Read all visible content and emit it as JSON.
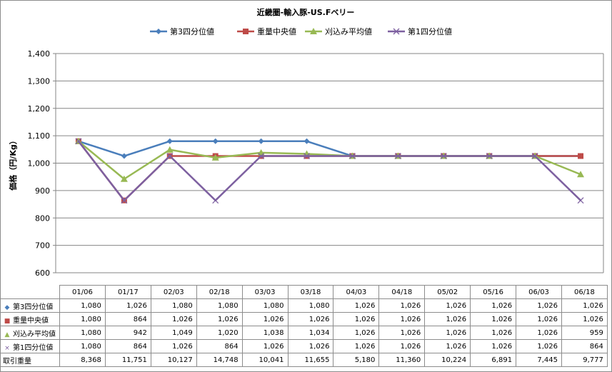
{
  "chart_data": {
    "type": "line",
    "title": "近畿圏-輸入豚-US.Fベリー",
    "ylabel": "価格（円/Kg）",
    "ylim": [
      600,
      1400
    ],
    "yticks": [
      600,
      700,
      800,
      900,
      1000,
      1100,
      1200,
      1300,
      1400
    ],
    "ytick_labels": [
      "600",
      "700",
      "800",
      "900",
      "1,000",
      "1,100",
      "1,200",
      "1,300",
      "1,400"
    ],
    "grid": true,
    "legend_position": "top",
    "categories": [
      "01/06",
      "01/17",
      "02/03",
      "02/18",
      "03/03",
      "03/18",
      "04/03",
      "04/18",
      "05/02",
      "05/16",
      "06/03",
      "06/18"
    ],
    "series": [
      {
        "name": "第3四分位値",
        "color": "#4a7ebb",
        "marker": "diamond",
        "values": [
          1080,
          1026,
          1080,
          1080,
          1080,
          1080,
          1026,
          1026,
          1026,
          1026,
          1026,
          1026
        ]
      },
      {
        "name": "重量中央値",
        "color": "#be4b48",
        "marker": "square",
        "values": [
          1080,
          864,
          1026,
          1026,
          1026,
          1026,
          1026,
          1026,
          1026,
          1026,
          1026,
          1026
        ]
      },
      {
        "name": "刈込み平均値",
        "color": "#98b954",
        "marker": "triangle",
        "values": [
          1080,
          942,
          1049,
          1020,
          1038,
          1034,
          1026,
          1026,
          1026,
          1026,
          1026,
          959
        ]
      },
      {
        "name": "第1四分位値",
        "color": "#7d60a0",
        "marker": "x",
        "values": [
          1080,
          864,
          1026,
          864,
          1026,
          1026,
          1026,
          1026,
          1026,
          1026,
          1026,
          864
        ]
      }
    ],
    "table": {
      "rows": [
        {
          "label": "第3四分位値",
          "marker": "◆",
          "color": "#4a7ebb",
          "cells": [
            "1,080",
            "1,026",
            "1,080",
            "1,080",
            "1,080",
            "1,080",
            "1,026",
            "1,026",
            "1,026",
            "1,026",
            "1,026",
            "1,026"
          ]
        },
        {
          "label": "重量中央値",
          "marker": "■",
          "color": "#be4b48",
          "cells": [
            "1,080",
            "864",
            "1,026",
            "1,026",
            "1,026",
            "1,026",
            "1,026",
            "1,026",
            "1,026",
            "1,026",
            "1,026",
            "1,026"
          ]
        },
        {
          "label": "刈込み平均値",
          "marker": "▲",
          "color": "#98b954",
          "cells": [
            "1,080",
            "942",
            "1,049",
            "1,020",
            "1,038",
            "1,034",
            "1,026",
            "1,026",
            "1,026",
            "1,026",
            "1,026",
            "959"
          ]
        },
        {
          "label": "第1四分位値",
          "marker": "×",
          "color": "#7d60a0",
          "cells": [
            "1,080",
            "864",
            "1,026",
            "864",
            "1,026",
            "1,026",
            "1,026",
            "1,026",
            "1,026",
            "1,026",
            "1,026",
            "864"
          ]
        },
        {
          "label": "取引重量",
          "marker": "",
          "color": "",
          "cells": [
            "8,368",
            "11,751",
            "10,127",
            "14,748",
            "10,041",
            "11,655",
            "5,180",
            "11,360",
            "10,224",
            "6,891",
            "7,445",
            "9,777"
          ]
        }
      ]
    }
  }
}
